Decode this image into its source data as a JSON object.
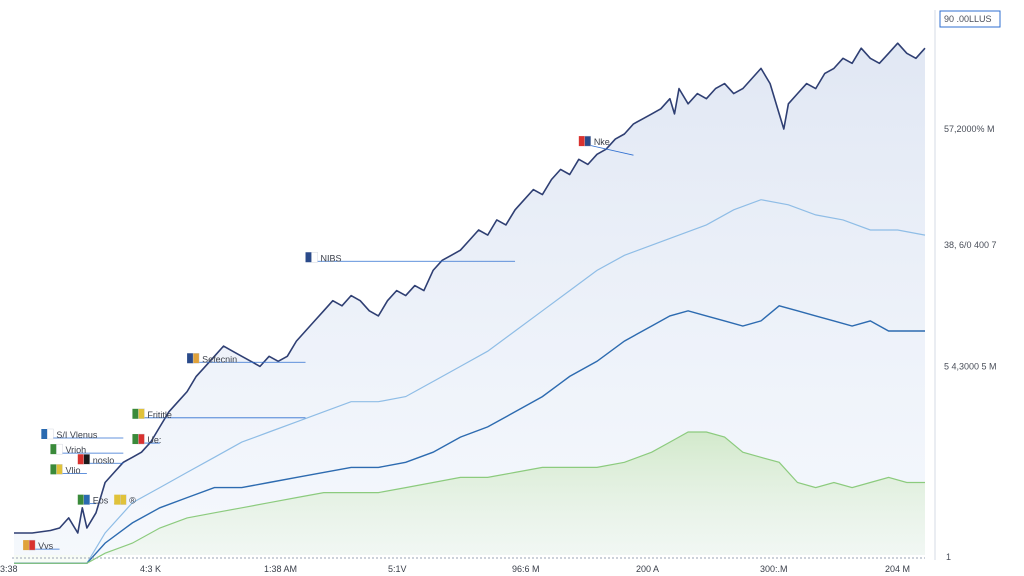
{
  "chart_data": {
    "type": "line",
    "title": "",
    "xlabel": "",
    "ylabel": "",
    "x_ticks": [
      "3:38",
      "4:3 K",
      "1:38 AM",
      "5:1V",
      "96:6 M",
      "200 A",
      "300:.M",
      "204 M"
    ],
    "y_right_ticks": [
      {
        "label": "57,2000% M",
        "y": 80
      },
      {
        "label": "38, 6/0 400 7",
        "y": 57
      },
      {
        "label": "5 4,3000 5 M",
        "y": 33
      }
    ],
    "y_right_top": "90 .00LLUS",
    "y_right_bottom": "1",
    "ylim": [
      0,
      100
    ],
    "xlim": [
      0,
      100
    ],
    "colors": {
      "main": "#2f3f73",
      "light_blue": "#8fbde6",
      "mid_blue": "#2d6bb0",
      "green": "#8ccb7e",
      "accent_border": "#2f6fd0"
    },
    "series": [
      {
        "key": "main",
        "points": [
          [
            0,
            0
          ],
          [
            2,
            0
          ],
          [
            4,
            0.5
          ],
          [
            5,
            1
          ],
          [
            6,
            3
          ],
          [
            7,
            0
          ],
          [
            7.5,
            5
          ],
          [
            8,
            1
          ],
          [
            9,
            4
          ],
          [
            10,
            10
          ],
          [
            11,
            12
          ],
          [
            12,
            14
          ],
          [
            13,
            15
          ],
          [
            14,
            16
          ],
          [
            15,
            18
          ],
          [
            16,
            21
          ],
          [
            17,
            24
          ],
          [
            18,
            26
          ],
          [
            19,
            28
          ],
          [
            20,
            31
          ],
          [
            21,
            33
          ],
          [
            22,
            35
          ],
          [
            23,
            37
          ],
          [
            24,
            36
          ],
          [
            25,
            35
          ],
          [
            26,
            34
          ],
          [
            27,
            33
          ],
          [
            28,
            35
          ],
          [
            29,
            34
          ],
          [
            30,
            35
          ],
          [
            31,
            38
          ],
          [
            32,
            40
          ],
          [
            33,
            42
          ],
          [
            34,
            44
          ],
          [
            35,
            46
          ],
          [
            36,
            45
          ],
          [
            37,
            47
          ],
          [
            38,
            46
          ],
          [
            39,
            44
          ],
          [
            40,
            43
          ],
          [
            41,
            46
          ],
          [
            42,
            48
          ],
          [
            43,
            47
          ],
          [
            44,
            49
          ],
          [
            45,
            48
          ],
          [
            46,
            52
          ],
          [
            47,
            54
          ],
          [
            48,
            55
          ],
          [
            49,
            56
          ],
          [
            50,
            58
          ],
          [
            51,
            60
          ],
          [
            52,
            59
          ],
          [
            53,
            62
          ],
          [
            54,
            61
          ],
          [
            55,
            64
          ],
          [
            56,
            66
          ],
          [
            57,
            68
          ],
          [
            58,
            67
          ],
          [
            59,
            70
          ],
          [
            60,
            72
          ],
          [
            61,
            71
          ],
          [
            62,
            74
          ],
          [
            63,
            73
          ],
          [
            64,
            75
          ],
          [
            65,
            76
          ],
          [
            66,
            78
          ],
          [
            67,
            79
          ],
          [
            68,
            81
          ],
          [
            69,
            82
          ],
          [
            70,
            83
          ],
          [
            71,
            84
          ],
          [
            72,
            86
          ],
          [
            72.5,
            83
          ],
          [
            73,
            88
          ],
          [
            74,
            85
          ],
          [
            75,
            87
          ],
          [
            76,
            86
          ],
          [
            77,
            88
          ],
          [
            78,
            89
          ],
          [
            79,
            87
          ],
          [
            80,
            88
          ],
          [
            81,
            90
          ],
          [
            82,
            92
          ],
          [
            83,
            89
          ],
          [
            84,
            83
          ],
          [
            84.5,
            80
          ],
          [
            85,
            85
          ],
          [
            86,
            87
          ],
          [
            87,
            89
          ],
          [
            88,
            88
          ],
          [
            89,
            91
          ],
          [
            90,
            92
          ],
          [
            91,
            94
          ],
          [
            92,
            93
          ],
          [
            93,
            96
          ],
          [
            94,
            94
          ],
          [
            95,
            93
          ],
          [
            96,
            95
          ],
          [
            97,
            97
          ],
          [
            98,
            95
          ],
          [
            99,
            94
          ],
          [
            100,
            96
          ]
        ]
      },
      {
        "key": "light_blue",
        "points": [
          [
            0,
            -6
          ],
          [
            8,
            -6
          ],
          [
            10,
            0
          ],
          [
            13,
            6
          ],
          [
            16,
            9
          ],
          [
            19,
            12
          ],
          [
            22,
            15
          ],
          [
            25,
            18
          ],
          [
            28,
            20
          ],
          [
            31,
            22
          ],
          [
            34,
            24
          ],
          [
            37,
            26
          ],
          [
            40,
            26
          ],
          [
            43,
            27
          ],
          [
            46,
            30
          ],
          [
            49,
            33
          ],
          [
            52,
            36
          ],
          [
            55,
            40
          ],
          [
            58,
            44
          ],
          [
            61,
            48
          ],
          [
            64,
            52
          ],
          [
            67,
            55
          ],
          [
            70,
            57
          ],
          [
            73,
            59
          ],
          [
            76,
            61
          ],
          [
            79,
            64
          ],
          [
            82,
            66
          ],
          [
            85,
            65
          ],
          [
            88,
            63
          ],
          [
            91,
            62
          ],
          [
            94,
            60
          ],
          [
            97,
            60
          ],
          [
            100,
            59
          ]
        ]
      },
      {
        "key": "mid_blue",
        "points": [
          [
            0,
            -6
          ],
          [
            8,
            -6
          ],
          [
            10,
            -2
          ],
          [
            13,
            2
          ],
          [
            16,
            5
          ],
          [
            19,
            7
          ],
          [
            22,
            9
          ],
          [
            25,
            9
          ],
          [
            28,
            10
          ],
          [
            31,
            11
          ],
          [
            34,
            12
          ],
          [
            37,
            13
          ],
          [
            40,
            13
          ],
          [
            43,
            14
          ],
          [
            46,
            16
          ],
          [
            49,
            19
          ],
          [
            52,
            21
          ],
          [
            55,
            24
          ],
          [
            58,
            27
          ],
          [
            61,
            31
          ],
          [
            64,
            34
          ],
          [
            67,
            38
          ],
          [
            70,
            41
          ],
          [
            72,
            43
          ],
          [
            74,
            44
          ],
          [
            76,
            43
          ],
          [
            78,
            42
          ],
          [
            80,
            41
          ],
          [
            82,
            42
          ],
          [
            84,
            45
          ],
          [
            86,
            44
          ],
          [
            88,
            43
          ],
          [
            90,
            42
          ],
          [
            92,
            41
          ],
          [
            94,
            42
          ],
          [
            96,
            40
          ],
          [
            98,
            40
          ],
          [
            100,
            40
          ]
        ]
      },
      {
        "key": "green",
        "points": [
          [
            0,
            -6
          ],
          [
            8,
            -6
          ],
          [
            10,
            -4
          ],
          [
            13,
            -2
          ],
          [
            16,
            1
          ],
          [
            19,
            3
          ],
          [
            22,
            4
          ],
          [
            25,
            5
          ],
          [
            28,
            6
          ],
          [
            31,
            7
          ],
          [
            34,
            8
          ],
          [
            37,
            8
          ],
          [
            40,
            8
          ],
          [
            43,
            9
          ],
          [
            46,
            10
          ],
          [
            49,
            11
          ],
          [
            52,
            11
          ],
          [
            55,
            12
          ],
          [
            58,
            13
          ],
          [
            61,
            13
          ],
          [
            64,
            13
          ],
          [
            67,
            14
          ],
          [
            70,
            16
          ],
          [
            72,
            18
          ],
          [
            74,
            20
          ],
          [
            76,
            20
          ],
          [
            78,
            19
          ],
          [
            80,
            16
          ],
          [
            82,
            15
          ],
          [
            84,
            14
          ],
          [
            86,
            10
          ],
          [
            88,
            9
          ],
          [
            90,
            10
          ],
          [
            92,
            9
          ],
          [
            94,
            10
          ],
          [
            96,
            11
          ],
          [
            98,
            10
          ],
          [
            100,
            10
          ]
        ]
      }
    ],
    "annotations": [
      {
        "text": "Nke",
        "flag_colors": [
          "#d9322f",
          "#2a4a8a"
        ],
        "bx": 62,
        "by": 78,
        "ax": 68,
        "ay": 76
      },
      {
        "text": "NIBS",
        "flag_colors": [
          "#2a4a8a",
          "#ffffff"
        ],
        "bx": 32,
        "by": 55,
        "ax": 55,
        "ay": 55
      },
      {
        "text": "Sefecnin",
        "flag_colors": [
          "#2a4a8a",
          "#e0a23a"
        ],
        "bx": 19,
        "by": 35,
        "ax": 32,
        "ay": 35
      },
      {
        "text": "Frititle",
        "flag_colors": [
          "#3a8a3a",
          "#e0c23a"
        ],
        "bx": 13,
        "by": 24,
        "ax": 32,
        "ay": 24
      },
      {
        "text": "S/I Vlenus",
        "flag_colors": [
          "#2a6ab0",
          "#ffffff"
        ],
        "bx": 3,
        "by": 20,
        "ax": 12,
        "ay": 20
      },
      {
        "text": "Ue:",
        "flag_colors": [
          "#3a8a3a",
          "#d9322f"
        ],
        "bx": 13,
        "by": 19,
        "ax": 16,
        "ay": 19
      },
      {
        "text": "Vrioh",
        "flag_colors": [
          "#3a8a3a",
          "#ffffff"
        ],
        "bx": 4,
        "by": 17,
        "ax": 12,
        "ay": 17
      },
      {
        "text": "noslo",
        "flag_colors": [
          "#d9322f",
          "#1a1a1a"
        ],
        "bx": 7,
        "by": 15,
        "ax": 12,
        "ay": 15
      },
      {
        "text": "Vlio",
        "flag_colors": [
          "#3a8a3a",
          "#e0c23a"
        ],
        "bx": 4,
        "by": 13,
        "ax": 8,
        "ay": 13
      },
      {
        "text": "Eos",
        "flag_colors": [
          "#3a8a3a",
          "#2a6ab0"
        ],
        "bx": 7,
        "by": 7,
        "ax": 9,
        "ay": 7
      },
      {
        "text": "®",
        "flag_colors": [
          "#e0c23a",
          "#e0c23a"
        ],
        "bx": 11,
        "by": 7,
        "ax": 11,
        "ay": 7
      },
      {
        "text": "Vvs",
        "flag_colors": [
          "#e0a23a",
          "#d9322f"
        ],
        "bx": 1,
        "by": -2,
        "ax": 5,
        "ay": -2
      }
    ]
  }
}
